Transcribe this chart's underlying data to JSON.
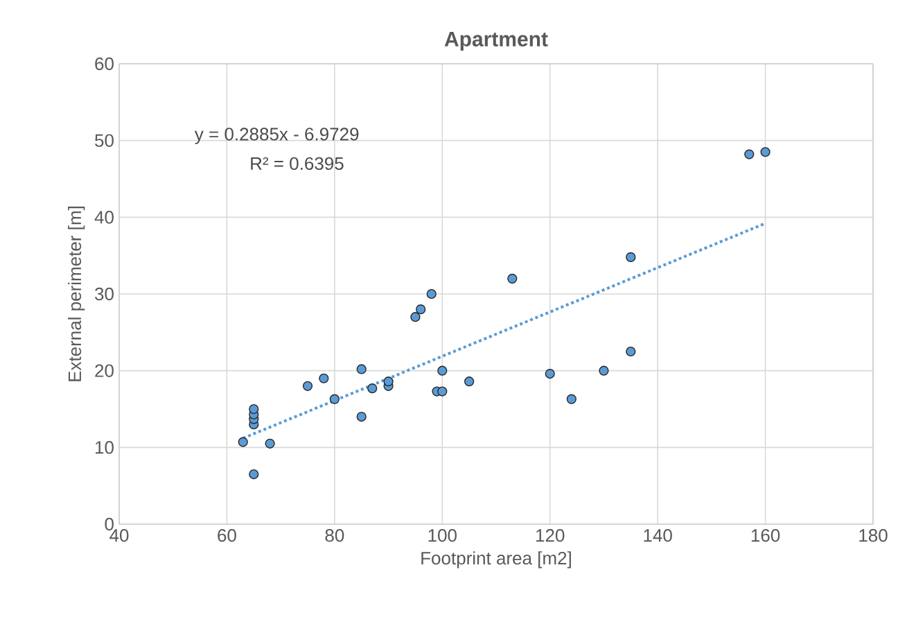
{
  "chart_data": {
    "type": "scatter",
    "title": "Apartment",
    "xlabel": "Footprint area [m2]",
    "ylabel": "External perimeter [m]",
    "xlim": [
      40,
      180
    ],
    "xticks": [
      40,
      60,
      80,
      100,
      120,
      140,
      160,
      180
    ],
    "ylim": [
      0,
      60
    ],
    "yticks": [
      0,
      10,
      20,
      30,
      40,
      50,
      60
    ],
    "grid": true,
    "annotations": [
      "y = 0.2885x - 6.9729",
      "R² = 0.6395"
    ],
    "series": [
      {
        "color": "#5b9bd5",
        "x": [
          63,
          65,
          65,
          65,
          65,
          65,
          68,
          75,
          78,
          80,
          85,
          85,
          87,
          90,
          90,
          95,
          96,
          98,
          99,
          100,
          100,
          105,
          113,
          120,
          124,
          130,
          135,
          135,
          157,
          160
        ],
        "values": [
          10.7,
          6.5,
          13,
          13.7,
          14.3,
          15,
          10.5,
          18,
          19,
          16.3,
          20.2,
          14,
          17.7,
          18,
          18.6,
          27,
          28,
          30,
          17.3,
          17.3,
          20,
          18.6,
          32,
          19.6,
          16.3,
          20,
          22.5,
          34.8,
          48.2,
          48.5
        ]
      },
      {
        "type": "line",
        "color": "#5b9bd5",
        "line_style": "dotted",
        "marker": "none",
        "x": [
          63,
          160
        ],
        "values": [
          11.2,
          39.2
        ]
      }
    ]
  }
}
